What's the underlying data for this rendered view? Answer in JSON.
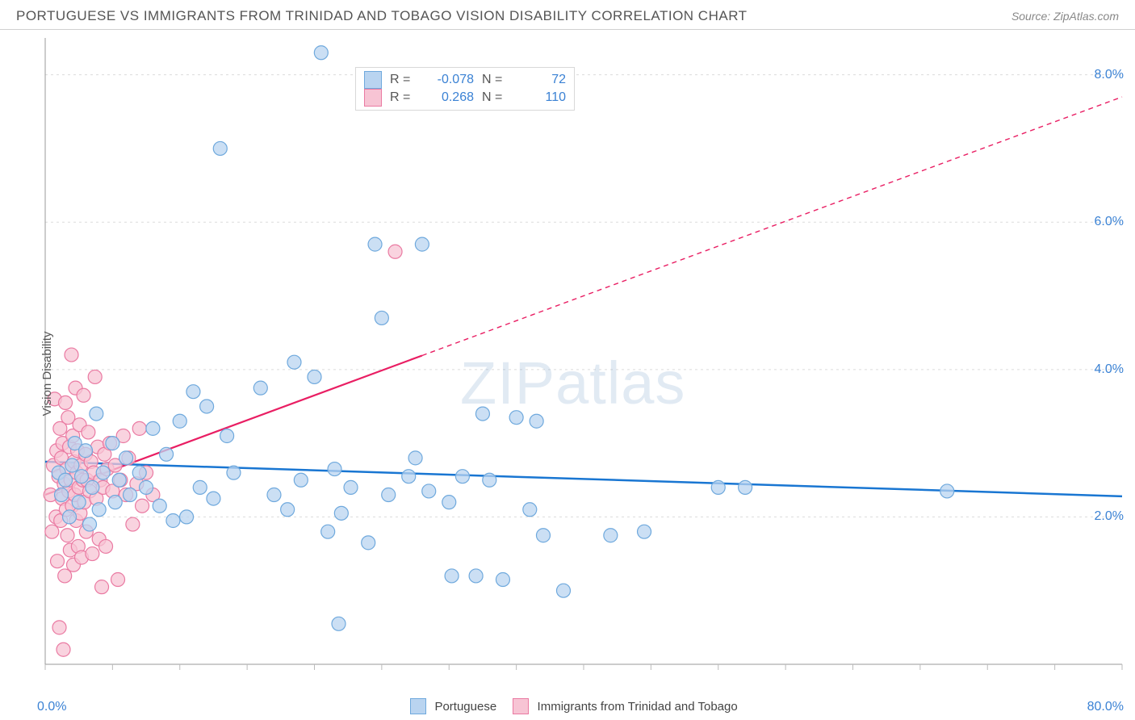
{
  "header": {
    "title": "PORTUGUESE VS IMMIGRANTS FROM TRINIDAD AND TOBAGO VISION DISABILITY CORRELATION CHART",
    "source_prefix": "Source: ",
    "source_name": "ZipAtlas.com"
  },
  "watermark": {
    "zip": "ZIP",
    "atlas": "atlas"
  },
  "chart": {
    "type": "scatter",
    "ylabel": "Vision Disability",
    "background_color": "#ffffff",
    "grid_color": "#dcdcdc",
    "axis_color": "#999999",
    "tick_color": "#bbbbbb",
    "label_color": "#3b82d4",
    "xlim": [
      0,
      80
    ],
    "ylim": [
      0,
      8.5
    ],
    "x_tick_label_min": "0.0%",
    "x_tick_label_max": "80.0%",
    "y_ticks": [
      2.0,
      4.0,
      6.0,
      8.0
    ],
    "y_tick_labels": [
      "2.0%",
      "4.0%",
      "6.0%",
      "8.0%"
    ],
    "x_minor_step": 5,
    "marker_radius": 8.5,
    "marker_stroke_width": 1.2,
    "series_a": {
      "name": "Portuguese",
      "fill": "#b9d4f0",
      "stroke": "#6fa9dd",
      "line_color": "#1976d2",
      "line_width": 2.5,
      "R": "-0.078",
      "N": "72",
      "trend": {
        "x1": 0,
        "y1": 2.75,
        "x2": 80,
        "y2": 2.28
      },
      "points": [
        [
          1.0,
          2.6
        ],
        [
          1.2,
          2.3
        ],
        [
          1.5,
          2.5
        ],
        [
          1.8,
          2.0
        ],
        [
          2.0,
          2.7
        ],
        [
          2.2,
          3.0
        ],
        [
          2.5,
          2.2
        ],
        [
          2.7,
          2.55
        ],
        [
          3.0,
          2.9
        ],
        [
          3.3,
          1.9
        ],
        [
          3.5,
          2.4
        ],
        [
          3.8,
          3.4
        ],
        [
          4.0,
          2.1
        ],
        [
          4.3,
          2.6
        ],
        [
          5.0,
          3.0
        ],
        [
          5.2,
          2.2
        ],
        [
          5.5,
          2.5
        ],
        [
          6.0,
          2.8
        ],
        [
          6.3,
          2.3
        ],
        [
          7.0,
          2.6
        ],
        [
          7.5,
          2.4
        ],
        [
          8.0,
          3.2
        ],
        [
          8.5,
          2.15
        ],
        [
          9.0,
          2.85
        ],
        [
          9.5,
          1.95
        ],
        [
          10.0,
          3.3
        ],
        [
          10.5,
          2.0
        ],
        [
          11.0,
          3.7
        ],
        [
          11.5,
          2.4
        ],
        [
          12.0,
          3.5
        ],
        [
          12.5,
          2.25
        ],
        [
          13.0,
          7.0
        ],
        [
          13.5,
          3.1
        ],
        [
          14.0,
          2.6
        ],
        [
          16.0,
          3.75
        ],
        [
          17.0,
          2.3
        ],
        [
          18.0,
          2.1
        ],
        [
          18.5,
          4.1
        ],
        [
          19.0,
          2.5
        ],
        [
          20.0,
          3.9
        ],
        [
          20.5,
          8.3
        ],
        [
          21.0,
          1.8
        ],
        [
          21.5,
          2.65
        ],
        [
          21.8,
          0.55
        ],
        [
          22.0,
          2.05
        ],
        [
          22.7,
          2.4
        ],
        [
          24.0,
          1.65
        ],
        [
          24.5,
          5.7
        ],
        [
          25.0,
          4.7
        ],
        [
          25.5,
          2.3
        ],
        [
          27.0,
          2.55
        ],
        [
          27.5,
          2.8
        ],
        [
          28.0,
          5.7
        ],
        [
          28.5,
          2.35
        ],
        [
          30.0,
          2.2
        ],
        [
          30.2,
          1.2
        ],
        [
          31.0,
          2.55
        ],
        [
          32.0,
          1.2
        ],
        [
          32.5,
          3.4
        ],
        [
          33.0,
          2.5
        ],
        [
          34.0,
          1.15
        ],
        [
          35.0,
          3.35
        ],
        [
          36.0,
          2.1
        ],
        [
          36.5,
          3.3
        ],
        [
          37.0,
          1.75
        ],
        [
          38.5,
          1.0
        ],
        [
          42.0,
          1.75
        ],
        [
          44.5,
          1.8
        ],
        [
          50.0,
          2.4
        ],
        [
          52.0,
          2.4
        ],
        [
          67.0,
          2.35
        ]
      ]
    },
    "series_b": {
      "name": "Immigrants from Trinidad and Tobago",
      "fill": "#f7c4d4",
      "stroke": "#ea7aa2",
      "line_color": "#e91e63",
      "line_width": 2.2,
      "dash": "6 5",
      "R": "0.268",
      "N": "110",
      "trend": {
        "x1": 0,
        "y1": 2.3,
        "x2": 80,
        "y2": 7.7
      },
      "trend_solid_until_x": 28,
      "points": [
        [
          0.4,
          2.3
        ],
        [
          0.5,
          1.8
        ],
        [
          0.6,
          2.7
        ],
        [
          0.7,
          3.6
        ],
        [
          0.8,
          2.0
        ],
        [
          0.85,
          2.9
        ],
        [
          0.9,
          1.4
        ],
        [
          1.0,
          2.55
        ],
        [
          1.05,
          0.5
        ],
        [
          1.1,
          3.2
        ],
        [
          1.15,
          1.95
        ],
        [
          1.2,
          2.8
        ],
        [
          1.25,
          2.25
        ],
        [
          1.3,
          3.0
        ],
        [
          1.35,
          0.2
        ],
        [
          1.4,
          2.45
        ],
        [
          1.45,
          1.2
        ],
        [
          1.5,
          3.55
        ],
        [
          1.55,
          2.1
        ],
        [
          1.6,
          2.65
        ],
        [
          1.65,
          1.75
        ],
        [
          1.7,
          3.35
        ],
        [
          1.75,
          2.35
        ],
        [
          1.8,
          2.95
        ],
        [
          1.85,
          1.55
        ],
        [
          1.9,
          2.5
        ],
        [
          1.95,
          4.2
        ],
        [
          2.0,
          2.15
        ],
        [
          2.05,
          3.1
        ],
        [
          2.1,
          1.35
        ],
        [
          2.15,
          2.75
        ],
        [
          2.2,
          2.3
        ],
        [
          2.25,
          3.75
        ],
        [
          2.3,
          1.95
        ],
        [
          2.35,
          2.6
        ],
        [
          2.4,
          2.9
        ],
        [
          2.45,
          1.6
        ],
        [
          2.5,
          2.4
        ],
        [
          2.55,
          3.25
        ],
        [
          2.6,
          2.05
        ],
        [
          2.65,
          2.7
        ],
        [
          2.7,
          1.45
        ],
        [
          2.8,
          2.5
        ],
        [
          2.85,
          3.65
        ],
        [
          2.9,
          2.2
        ],
        [
          3.0,
          2.85
        ],
        [
          3.05,
          1.8
        ],
        [
          3.1,
          2.5
        ],
        [
          3.2,
          3.15
        ],
        [
          3.3,
          2.35
        ],
        [
          3.4,
          2.75
        ],
        [
          3.5,
          1.5
        ],
        [
          3.6,
          2.6
        ],
        [
          3.7,
          3.9
        ],
        [
          3.8,
          2.25
        ],
        [
          3.9,
          2.95
        ],
        [
          4.0,
          1.7
        ],
        [
          4.1,
          2.5
        ],
        [
          4.2,
          1.05
        ],
        [
          4.3,
          2.4
        ],
        [
          4.4,
          2.85
        ],
        [
          4.5,
          1.6
        ],
        [
          4.6,
          2.65
        ],
        [
          4.8,
          3.0
        ],
        [
          5.0,
          2.35
        ],
        [
          5.2,
          2.7
        ],
        [
          5.4,
          1.15
        ],
        [
          5.6,
          2.5
        ],
        [
          5.8,
          3.1
        ],
        [
          6.0,
          2.3
        ],
        [
          6.2,
          2.8
        ],
        [
          6.5,
          1.9
        ],
        [
          6.8,
          2.45
        ],
        [
          7.0,
          3.2
        ],
        [
          7.2,
          2.15
        ],
        [
          7.5,
          2.6
        ],
        [
          8.0,
          2.3
        ],
        [
          26.0,
          5.6
        ]
      ]
    }
  }
}
